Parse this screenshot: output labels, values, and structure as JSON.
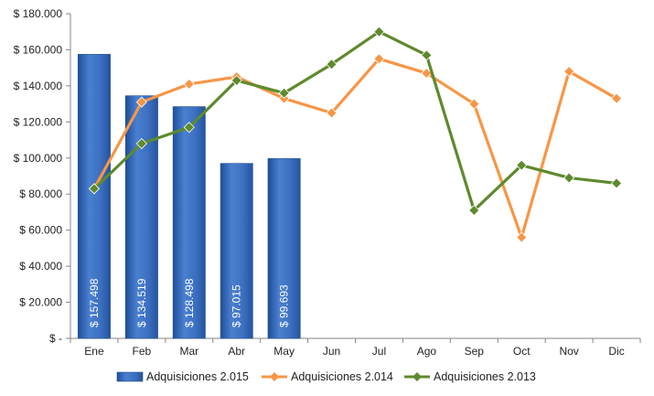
{
  "chart_data": {
    "type": "bar",
    "title": "",
    "xlabel": "",
    "ylabel": "",
    "categories": [
      "Ene",
      "Feb",
      "Mar",
      "Abr",
      "May",
      "Jun",
      "Jul",
      "Ago",
      "Sep",
      "Oct",
      "Nov",
      "Dic"
    ],
    "ylim": [
      0,
      180000
    ],
    "yticks": [
      0,
      20000,
      40000,
      60000,
      80000,
      100000,
      120000,
      140000,
      160000,
      180000
    ],
    "ytick_labels": [
      "$ -",
      "$ 20.000",
      "$ 40.000",
      "$ 60.000",
      "$ 80.000",
      "$ 100.000",
      "$ 120.000",
      "$ 140.000",
      "$ 160.000",
      "$ 180.000"
    ],
    "grid": false,
    "legend_position": "bottom",
    "series": [
      {
        "name": "Adquisiciones 2.015",
        "type": "bar",
        "color": "#3B6FBF",
        "values": [
          157498,
          134519,
          128498,
          97015,
          99693,
          null,
          null,
          null,
          null,
          null,
          null,
          null
        ],
        "data_labels": [
          "$ 157.498",
          "$ 134.519",
          "$ 128.498",
          "$ 97.015",
          "$ 99.693"
        ]
      },
      {
        "name": "Adquisiciones 2.014",
        "type": "line",
        "color": "#F79646",
        "marker": "diamond",
        "values": [
          83000,
          131000,
          141000,
          145000,
          133000,
          125000,
          155000,
          147000,
          130000,
          56000,
          148000,
          133000
        ]
      },
      {
        "name": "Adquisiciones 2.013",
        "type": "line",
        "color": "#5E8A2E",
        "marker": "diamond",
        "values": [
          83000,
          108000,
          117000,
          143000,
          136000,
          152000,
          170000,
          157000,
          71000,
          96000,
          89000,
          86000
        ]
      }
    ]
  }
}
